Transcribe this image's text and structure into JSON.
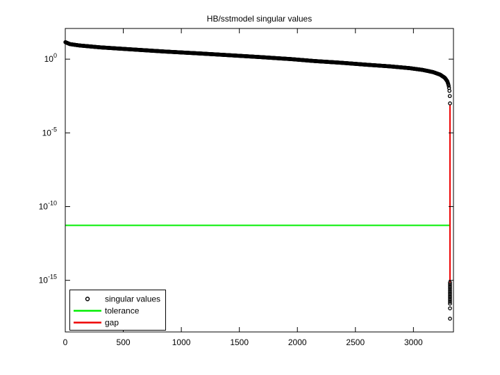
{
  "figure": {
    "background": "#ffffff",
    "axes_color": "#000000"
  },
  "chart_data": {
    "type": "scatter",
    "title": "HB/sstmodel singular values",
    "xlabel": "",
    "ylabel": "",
    "grid": false,
    "x_axis": {
      "scale": "linear",
      "min": 0,
      "max": 3345,
      "ticks": [
        0,
        500,
        1000,
        1500,
        2000,
        2500,
        3000
      ]
    },
    "y_axis": {
      "scale": "log10",
      "min_exp": -18.5,
      "max_exp": 2.08,
      "tick_exps": [
        0,
        -5,
        -10,
        -15
      ],
      "tick_labels": [
        "10^0",
        "10^-5",
        "10^-10",
        "10^-15"
      ]
    },
    "legend": {
      "position": "southwest",
      "entries": [
        {
          "label": "singular values",
          "swatch": "open-circle-marker",
          "color": "#000000"
        },
        {
          "label": "tolerance",
          "swatch": "line",
          "color": "#00ee00"
        },
        {
          "label": "gap",
          "swatch": "line",
          "color": "#ee0000"
        }
      ]
    },
    "series": [
      {
        "name": "singular values",
        "style": "open-circle-markers",
        "color": "#000000",
        "marker_radius": 2.2,
        "sample_step_index": 3,
        "profile_points_index_log10": [
          [
            1,
            1.15
          ],
          [
            40,
            1.02
          ],
          [
            120,
            0.93
          ],
          [
            300,
            0.8
          ],
          [
            574,
            0.66
          ],
          [
            850,
            0.52
          ],
          [
            1172,
            0.38
          ],
          [
            1450,
            0.25
          ],
          [
            1700,
            0.13
          ],
          [
            1950,
            0.0
          ],
          [
            2150,
            -0.13
          ],
          [
            2369,
            -0.24
          ],
          [
            2600,
            -0.38
          ],
          [
            2800,
            -0.49
          ],
          [
            2967,
            -0.61
          ],
          [
            3080,
            -0.73
          ],
          [
            3170,
            -0.88
          ],
          [
            3230,
            -1.05
          ],
          [
            3270,
            -1.26
          ],
          [
            3292,
            -1.5
          ],
          [
            3303,
            -1.76
          ],
          [
            3309,
            -2.05
          ],
          [
            3312,
            -2.35
          ],
          [
            3314,
            -2.65
          ],
          [
            3315,
            -3.0
          ]
        ],
        "below_gap_points_index_log10": [
          [
            3315,
            -15.15
          ],
          [
            3315,
            -15.28
          ],
          [
            3315,
            -15.41
          ],
          [
            3315,
            -15.54
          ],
          [
            3315,
            -15.67
          ],
          [
            3315,
            -15.8
          ],
          [
            3315,
            -15.93
          ],
          [
            3315,
            -16.06
          ],
          [
            3315,
            -16.19
          ],
          [
            3315,
            -16.32
          ],
          [
            3315,
            -16.45
          ],
          [
            3315,
            -16.58
          ],
          [
            3315,
            -16.9
          ],
          [
            3315,
            -17.6
          ]
        ]
      },
      {
        "name": "tolerance",
        "style": "hline",
        "color": "#00ee00",
        "value_log10": -11.27,
        "x_span": [
          0,
          3315
        ]
      },
      {
        "name": "gap",
        "style": "vline",
        "color": "#ee0000",
        "x": 3315,
        "y_span_log10": [
          -3.07,
          -15.15
        ]
      }
    ]
  }
}
